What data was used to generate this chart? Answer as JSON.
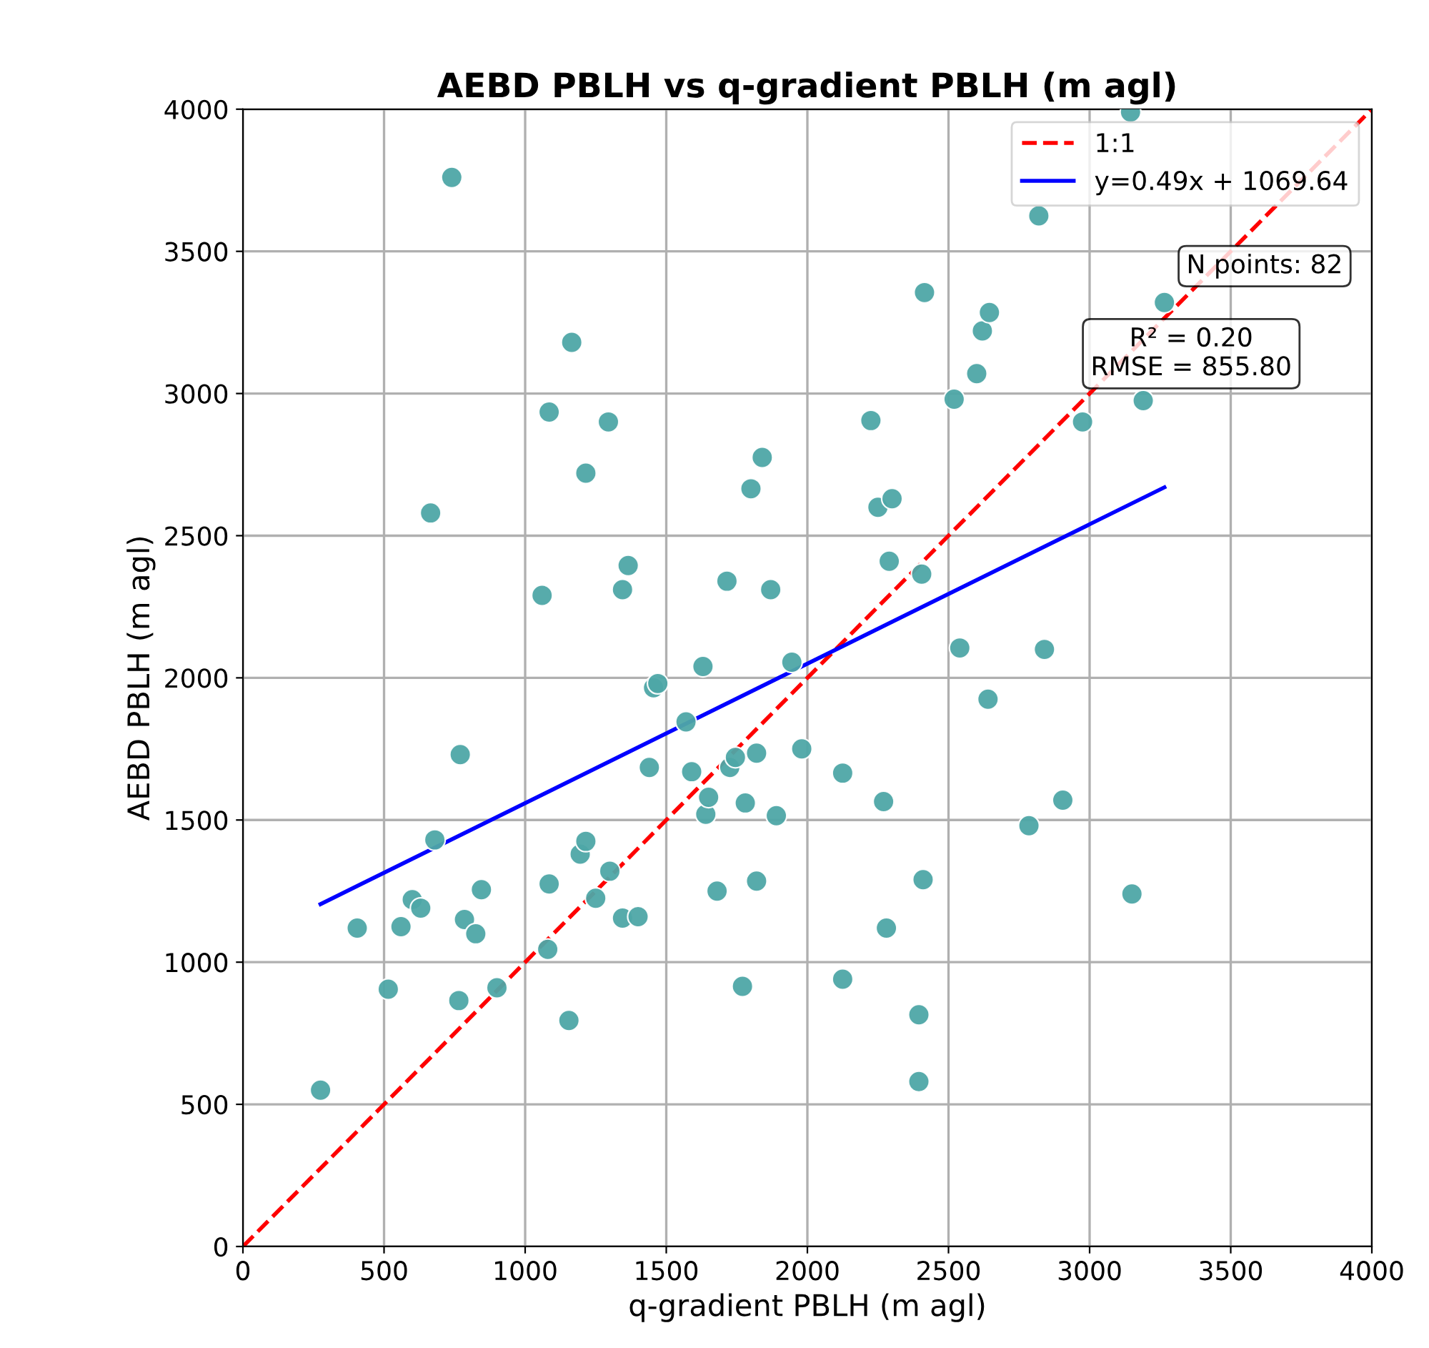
{
  "chart_data": {
    "type": "scatter",
    "title": "AEBD PBLH vs q-gradient PBLH (m agl)",
    "xlabel": "q-gradient PBLH (m agl)",
    "ylabel": "AEBD PBLH (m agl)",
    "xlim": [
      0,
      4000
    ],
    "ylim": [
      0,
      4000
    ],
    "xticks": [
      0,
      500,
      1000,
      1500,
      2000,
      2500,
      3000,
      3500,
      4000
    ],
    "yticks": [
      0,
      500,
      1000,
      1500,
      2000,
      2500,
      3000,
      3500,
      4000
    ],
    "grid": true,
    "legend": "top right",
    "series": [
      {
        "color": "#4ea6a6",
        "marker": "circle",
        "x": [
          275,
          405,
          515,
          560,
          600,
          630,
          665,
          680,
          740,
          765,
          770,
          785,
          825,
          845,
          900,
          1060,
          1080,
          1085,
          1085,
          1155,
          1165,
          1195,
          1215,
          1215,
          1250,
          1300,
          1295,
          1345,
          1345,
          1365,
          1400,
          1440,
          1455,
          1470,
          1570,
          1590,
          1630,
          1640,
          1650,
          1680,
          1715,
          1725,
          1745,
          1770,
          1780,
          1800,
          1820,
          1820,
          1840,
          1870,
          1890,
          1945,
          1980,
          2125,
          2125,
          2225,
          2250,
          2270,
          2280,
          2300,
          2290,
          2395,
          2395,
          2405,
          2410,
          2415,
          2520,
          2540,
          2600,
          2620,
          2645,
          2640,
          2785,
          2820,
          2840,
          2905,
          2975,
          3145,
          3150,
          3265,
          3190
        ],
        "values": [
          550,
          1120,
          905,
          1125,
          1220,
          1190,
          2580,
          1430,
          3760,
          865,
          1730,
          1150,
          1100,
          1255,
          910,
          2290,
          1045,
          1275,
          2935,
          795,
          3180,
          1380,
          1425,
          2720,
          1225,
          1320,
          2900,
          1155,
          2310,
          2395,
          1160,
          1685,
          1965,
          1980,
          1845,
          1670,
          2040,
          1520,
          1580,
          1250,
          2340,
          1685,
          1720,
          915,
          1560,
          2665,
          1285,
          1735,
          2775,
          2310,
          1515,
          2055,
          1750,
          1665,
          940,
          2905,
          2600,
          1565,
          1120,
          2630,
          2410,
          580,
          815,
          2365,
          1290,
          3355,
          2980,
          2105,
          3070,
          3220,
          3285,
          1925,
          1480,
          3625,
          2100,
          1570,
          2900,
          3990,
          1240,
          3320,
          2975
        ]
      },
      {
        "type": "line",
        "name": "1:1",
        "color": "#ff0000",
        "line_style": "dashed",
        "x": [
          0,
          4000
        ],
        "values": [
          0,
          4000
        ]
      },
      {
        "type": "line",
        "name": "y=0.49x + 1069.64",
        "color": "#0000ff",
        "line_style": "solid",
        "x": [
          275,
          3265
        ],
        "values": [
          1204,
          2670
        ]
      }
    ],
    "annotations": [
      "N points: 82",
      "R² = 0.20\nRMSE = 855.80"
    ]
  }
}
